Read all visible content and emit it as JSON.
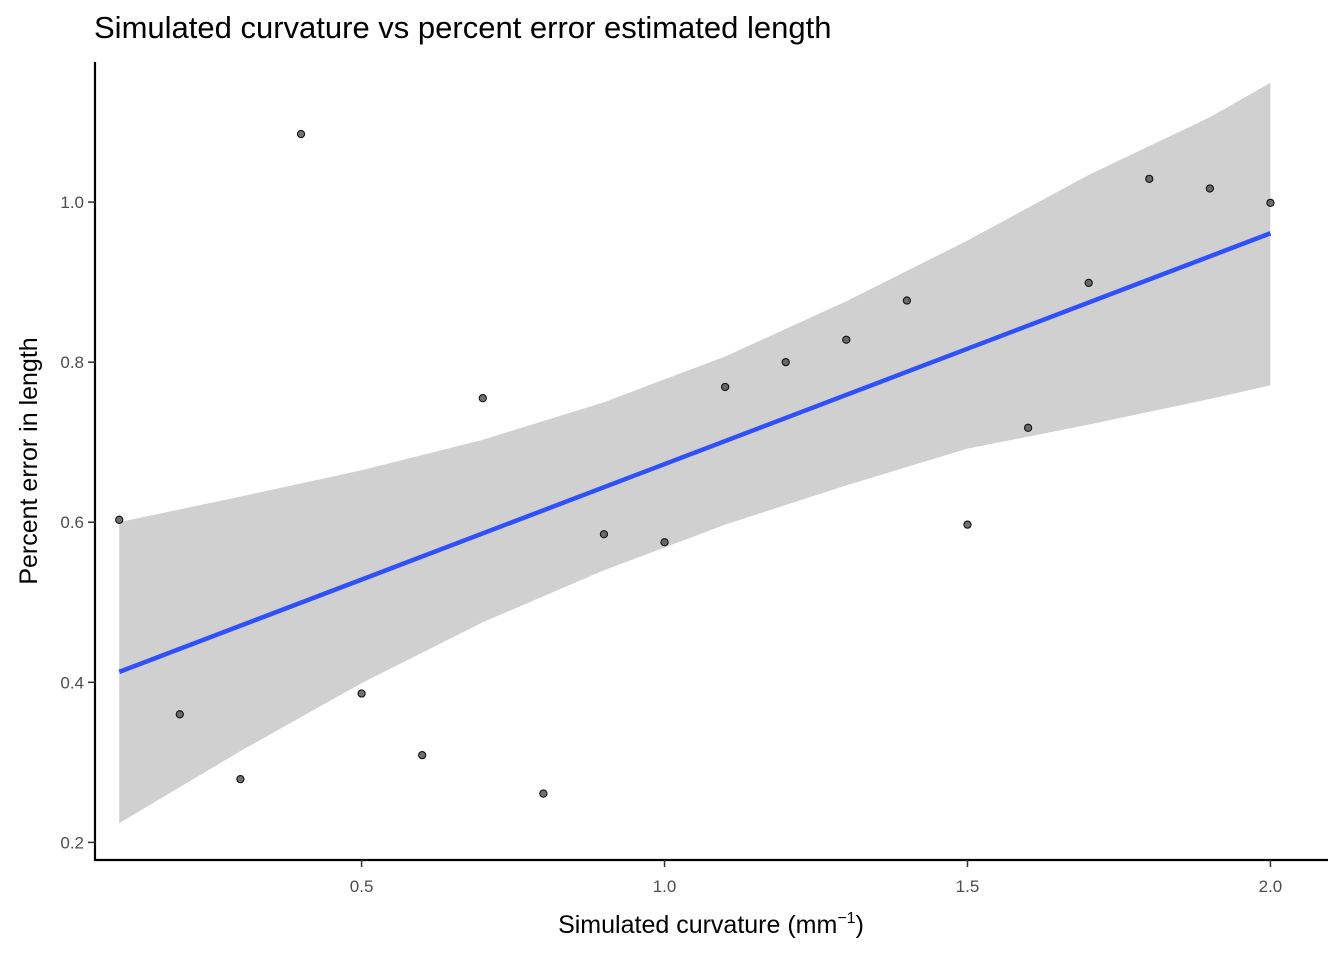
{
  "chart_data": {
    "type": "scatter",
    "title": "Simulated curvature vs percent error estimated length",
    "xlabel_main": "Simulated curvature (mm",
    "xlabel_sup": "−1",
    "xlabel_close": ")",
    "ylabel": "Percent error in length",
    "xlim": [
      0.06,
      2.095
    ],
    "ylim": [
      0.178,
      1.175
    ],
    "xticks": [
      0.5,
      1.0,
      1.5,
      2.0
    ],
    "xtick_labels": [
      "0.5",
      "1.0",
      "1.5",
      "2.0"
    ],
    "yticks": [
      0.2,
      0.4,
      0.6,
      0.8,
      1.0
    ],
    "ytick_labels": [
      "0.2",
      "0.4",
      "0.6",
      "0.8",
      "1.0"
    ],
    "grid": false,
    "points": [
      {
        "x": 0.1,
        "y": 0.603
      },
      {
        "x": 0.2,
        "y": 0.36
      },
      {
        "x": 0.3,
        "y": 0.279
      },
      {
        "x": 0.4,
        "y": 1.085
      },
      {
        "x": 0.5,
        "y": 0.386
      },
      {
        "x": 0.6,
        "y": 0.309
      },
      {
        "x": 0.7,
        "y": 0.755
      },
      {
        "x": 0.8,
        "y": 0.261
      },
      {
        "x": 0.9,
        "y": 0.585
      },
      {
        "x": 1.0,
        "y": 0.575
      },
      {
        "x": 1.1,
        "y": 0.769
      },
      {
        "x": 1.2,
        "y": 0.8
      },
      {
        "x": 1.3,
        "y": 0.828
      },
      {
        "x": 1.4,
        "y": 0.877
      },
      {
        "x": 1.5,
        "y": 0.597
      },
      {
        "x": 1.6,
        "y": 0.718
      },
      {
        "x": 1.7,
        "y": 0.899
      },
      {
        "x": 1.8,
        "y": 1.029
      },
      {
        "x": 1.9,
        "y": 1.017
      },
      {
        "x": 2.0,
        "y": 0.999
      }
    ],
    "fit_line": {
      "x": [
        0.1,
        2.0
      ],
      "y": [
        0.413,
        0.961
      ]
    },
    "confidence_band": {
      "x": [
        0.1,
        0.3,
        0.5,
        0.7,
        0.9,
        1.1,
        1.3,
        1.5,
        1.7,
        1.9,
        2.0
      ],
      "upper": [
        0.6,
        0.632,
        0.665,
        0.703,
        0.75,
        0.807,
        0.876,
        0.952,
        1.034,
        1.106,
        1.149
      ],
      "lower": [
        0.224,
        0.314,
        0.399,
        0.475,
        0.54,
        0.597,
        0.646,
        0.692,
        0.722,
        0.754,
        0.771
      ]
    },
    "colors": {
      "point": "#4d4d4d",
      "fit_line": "#3050f8",
      "band": "#d0d0d0",
      "axis": "#000000",
      "tick_label": "#4d4d4d"
    }
  }
}
